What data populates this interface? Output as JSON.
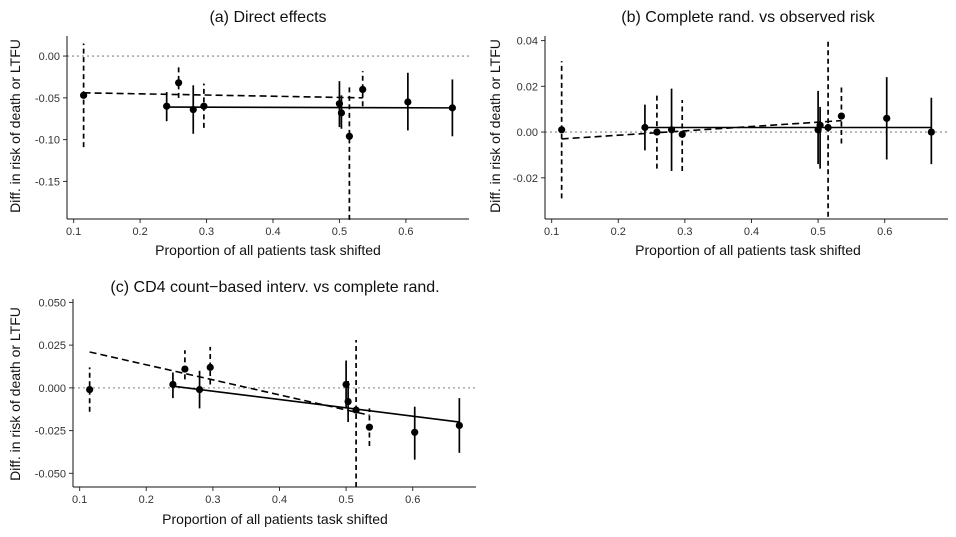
{
  "chart_data": [
    {
      "id": "a",
      "type": "scatter",
      "title": "(a) Direct effects",
      "xlabel": "Proportion of all patients task shifted",
      "ylabel": "Diff. in risk of death or LTFU",
      "xlim": [
        0.09,
        0.695
      ],
      "ylim": [
        -0.195,
        0.024
      ],
      "xticks": [
        0.1,
        0.2,
        0.3,
        0.4,
        0.5,
        0.6
      ],
      "xtick_labels": [
        "0.1",
        "0.2",
        "0.3",
        "0.4",
        "0.5",
        "0.6"
      ],
      "yticks": [
        0.0,
        -0.05,
        -0.1,
        -0.15
      ],
      "ytick_labels": [
        "0.00",
        "-0.05",
        "-0.10",
        "-0.15"
      ],
      "reference_line_y": 0,
      "series": [
        {
          "name": "dashed",
          "line_style": "dashed",
          "points": [
            {
              "x": 0.115,
              "y": -0.047,
              "low": -0.109,
              "high": 0.015
            },
            {
              "x": 0.258,
              "y": -0.032,
              "low": -0.05,
              "high": -0.012
            },
            {
              "x": 0.296,
              "y": -0.06,
              "low": -0.086,
              "high": -0.033
            },
            {
              "x": 0.515,
              "y": -0.096,
              "low": -0.196,
              "high": -0.035
            },
            {
              "x": 0.535,
              "y": -0.04,
              "low": -0.06,
              "high": -0.018
            }
          ],
          "fit": [
            [
              0.115,
              -0.044
            ],
            [
              0.535,
              -0.05
            ]
          ]
        },
        {
          "name": "solid",
          "line_style": "solid",
          "points": [
            {
              "x": 0.24,
              "y": -0.06,
              "low": -0.078,
              "high": -0.043
            },
            {
              "x": 0.28,
              "y": -0.064,
              "low": -0.093,
              "high": -0.035
            },
            {
              "x": 0.5,
              "y": -0.057,
              "low": -0.085,
              "high": -0.03
            },
            {
              "x": 0.503,
              "y": -0.068,
              "low": -0.087,
              "high": -0.047
            },
            {
              "x": 0.603,
              "y": -0.055,
              "low": -0.089,
              "high": -0.02
            },
            {
              "x": 0.67,
              "y": -0.062,
              "low": -0.096,
              "high": -0.028
            }
          ],
          "fit": [
            [
              0.24,
              -0.061
            ],
            [
              0.67,
              -0.062
            ]
          ]
        }
      ]
    },
    {
      "id": "b",
      "type": "scatter",
      "title": "(b) Complete rand. vs observed risk",
      "xlabel": "Proportion of all patients task shifted",
      "ylabel": "Diff. in risk of death or LTFU",
      "xlim": [
        0.09,
        0.695
      ],
      "ylim": [
        -0.038,
        0.042
      ],
      "xticks": [
        0.1,
        0.2,
        0.3,
        0.4,
        0.5,
        0.6
      ],
      "xtick_labels": [
        "0.1",
        "0.2",
        "0.3",
        "0.4",
        "0.5",
        "0.6"
      ],
      "yticks": [
        0.04,
        0.02,
        0.0,
        -0.02
      ],
      "ytick_labels": [
        "0.04",
        "0.02",
        "0.00",
        "-0.02"
      ],
      "reference_line_y": 0,
      "series": [
        {
          "name": "dashed",
          "line_style": "dashed",
          "points": [
            {
              "x": 0.115,
              "y": 0.001,
              "low": -0.029,
              "high": 0.031
            },
            {
              "x": 0.258,
              "y": 0.0,
              "low": -0.016,
              "high": 0.016
            },
            {
              "x": 0.296,
              "y": -0.001,
              "low": -0.017,
              "high": 0.014
            },
            {
              "x": 0.515,
              "y": 0.002,
              "low": -0.037,
              "high": 0.04
            },
            {
              "x": 0.535,
              "y": 0.007,
              "low": -0.005,
              "high": 0.02
            }
          ],
          "fit": [
            [
              0.115,
              -0.003
            ],
            [
              0.535,
              0.005
            ]
          ]
        },
        {
          "name": "solid",
          "line_style": "solid",
          "points": [
            {
              "x": 0.24,
              "y": 0.002,
              "low": -0.008,
              "high": 0.012
            },
            {
              "x": 0.28,
              "y": 0.001,
              "low": -0.017,
              "high": 0.019
            },
            {
              "x": 0.5,
              "y": 0.001,
              "low": -0.014,
              "high": 0.018
            },
            {
              "x": 0.503,
              "y": 0.003,
              "low": -0.016,
              "high": 0.011
            },
            {
              "x": 0.603,
              "y": 0.006,
              "low": -0.012,
              "high": 0.024
            },
            {
              "x": 0.67,
              "y": 0.0,
              "low": -0.014,
              "high": 0.015
            }
          ],
          "fit": [
            [
              0.24,
              0.002
            ],
            [
              0.67,
              0.002
            ]
          ]
        }
      ]
    },
    {
      "id": "c",
      "type": "scatter",
      "title": "(c) CD4 count−based interv. vs complete rand.",
      "xlabel": "Proportion of all patients task shifted",
      "ylabel": "Diff. in risk of death or LTFU",
      "xlim": [
        0.09,
        0.695
      ],
      "ylim": [
        -0.058,
        0.052
      ],
      "xticks": [
        0.1,
        0.2,
        0.3,
        0.4,
        0.5,
        0.6
      ],
      "xtick_labels": [
        "0.1",
        "0.2",
        "0.3",
        "0.4",
        "0.5",
        "0.6"
      ],
      "yticks": [
        0.05,
        0.025,
        0.0,
        -0.025,
        -0.05
      ],
      "ytick_labels": [
        "0.050",
        "0.025",
        "0.000",
        "-0.025",
        "-0.050"
      ],
      "reference_line_y": 0,
      "series": [
        {
          "name": "dashed",
          "line_style": "dashed",
          "points": [
            {
              "x": 0.115,
              "y": -0.001,
              "low": -0.014,
              "high": 0.012
            },
            {
              "x": 0.258,
              "y": 0.011,
              "low": 0.005,
              "high": 0.022
            },
            {
              "x": 0.296,
              "y": 0.012,
              "low": 0.002,
              "high": 0.024
            },
            {
              "x": 0.515,
              "y": -0.013,
              "low": -0.058,
              "high": 0.028
            },
            {
              "x": 0.535,
              "y": -0.023,
              "low": -0.034,
              "high": -0.012
            }
          ],
          "fit": [
            [
              0.115,
              0.021
            ],
            [
              0.535,
              -0.016
            ]
          ]
        },
        {
          "name": "solid",
          "line_style": "solid",
          "points": [
            {
              "x": 0.24,
              "y": 0.002,
              "low": -0.006,
              "high": 0.009
            },
            {
              "x": 0.28,
              "y": -0.001,
              "low": -0.012,
              "high": 0.01
            },
            {
              "x": 0.5,
              "y": 0.002,
              "low": -0.012,
              "high": 0.016
            },
            {
              "x": 0.503,
              "y": -0.008,
              "low": -0.02,
              "high": 0.004
            },
            {
              "x": 0.603,
              "y": -0.026,
              "low": -0.042,
              "high": -0.011
            },
            {
              "x": 0.67,
              "y": -0.022,
              "low": -0.038,
              "high": -0.006
            }
          ],
          "fit": [
            [
              0.24,
              0.001
            ],
            [
              0.67,
              -0.02
            ]
          ]
        }
      ]
    }
  ]
}
